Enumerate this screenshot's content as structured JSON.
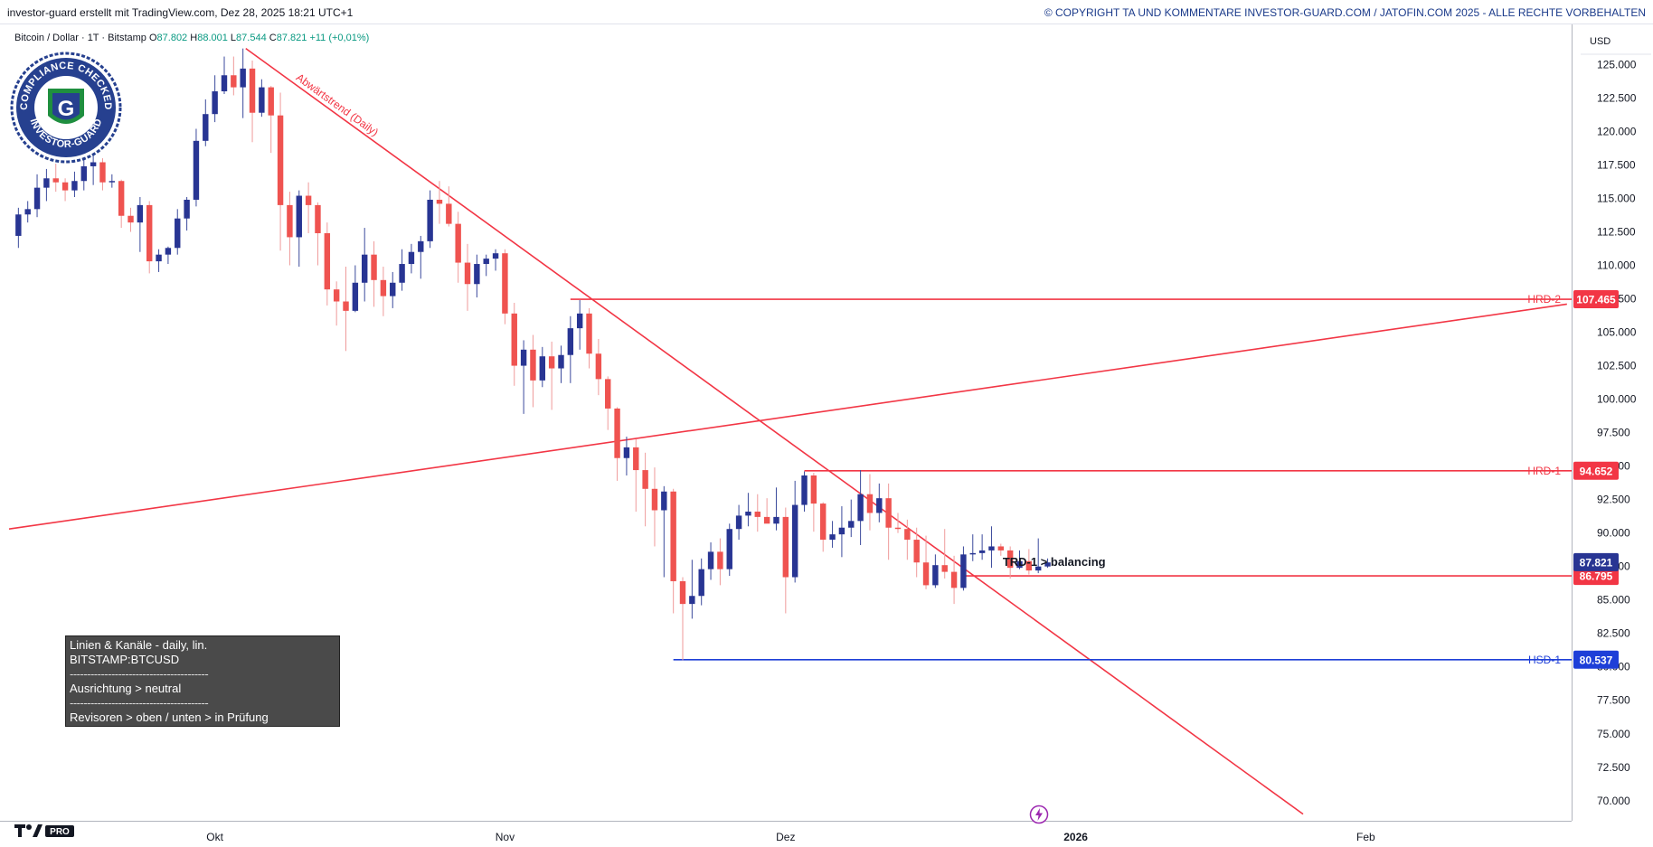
{
  "header": {
    "left_text": "investor-guard erstellt mit TradingView.com, Dez 28, 2025 18:21 UTC+1",
    "right_text": "© COPYRIGHT TA UND KOMMENTARE INVESTOR-GUARD.COM / JATOFIN.COM 2025 - ALLE RECHTE VORBEHALTEN"
  },
  "symbol": {
    "name": "Bitcoin / Dollar · 1T · Bitstamp",
    "o_label": "O",
    "o": "87.802",
    "h_label": "H",
    "h": "88.001",
    "l_label": "L",
    "l": "87.544",
    "c_label": "C",
    "c": "87.821",
    "change": "+11 (+0,01%)"
  },
  "logo": {
    "top_text": "COMPLIANCE CHECKED",
    "bottom_text": "INVESTOR-GUARD",
    "letter": "G"
  },
  "info_box": {
    "line1": "Linien & Kanäle - daily, lin.",
    "line2": "BITSTAMP:BTCUSD",
    "sep1": "----------------------------------------",
    "line3": "Ausrichtung > neutral",
    "sep2": "----------------------------------------",
    "line4": "Revisoren > oben / unten > in Prüfung"
  },
  "tv_badge": "PRO",
  "colors": {
    "up": "#283593",
    "down": "#ef5350",
    "resistance": "#f23645",
    "support": "#1e3fd8",
    "price": "#283593",
    "axis_text": "#131722"
  },
  "chart_data": {
    "type": "candlestick",
    "currency": "USD",
    "y_ticks": [
      70000,
      72500,
      75000,
      77500,
      80000,
      82500,
      85000,
      87500,
      90000,
      92500,
      95000,
      97500,
      100000,
      102500,
      105000,
      107500,
      110000,
      112500,
      115000,
      117500,
      120000,
      122500,
      125000
    ],
    "y_tick_labels": [
      "70.000",
      "72.500",
      "75.000",
      "77.500",
      "80.000",
      "82.500",
      "85.000",
      "87.500",
      "90.000",
      "92.500",
      "95.000",
      "97.500",
      "100.000",
      "102.500",
      "105.000",
      "107.500",
      "110.000",
      "112.500",
      "115.000",
      "117.500",
      "120.000",
      "122.500",
      "125.000"
    ],
    "ylim": [
      68500,
      128000
    ],
    "x_ticks": [
      {
        "label": "Okt",
        "index": 21
      },
      {
        "label": "Nov",
        "index": 52
      },
      {
        "label": "Dez",
        "index": 82
      },
      {
        "label": "2026",
        "index": 113
      },
      {
        "label": "Feb",
        "index": 144
      }
    ],
    "xlim": [
      -1,
      166
    ],
    "candles": [
      [
        112200,
        114300,
        111300,
        113800
      ],
      [
        113800,
        114800,
        113200,
        114200
      ],
      [
        114200,
        116800,
        113600,
        115800
      ],
      [
        115800,
        117200,
        114800,
        116500
      ],
      [
        116500,
        117600,
        115500,
        116200
      ],
      [
        116200,
        116500,
        114800,
        115600
      ],
      [
        115600,
        117000,
        115100,
        116300
      ],
      [
        116300,
        117900,
        115600,
        117400
      ],
      [
        117400,
        118200,
        116000,
        117700
      ],
      [
        117700,
        118000,
        115600,
        116200
      ],
      [
        116200,
        116800,
        115800,
        116300
      ],
      [
        116300,
        116400,
        112800,
        113700
      ],
      [
        113700,
        114300,
        112500,
        113200
      ],
      [
        113200,
        115100,
        111000,
        114500
      ],
      [
        114500,
        114800,
        109400,
        110300
      ],
      [
        110300,
        111200,
        109500,
        110800
      ],
      [
        110800,
        111400,
        110100,
        111300
      ],
      [
        111300,
        114200,
        110800,
        113500
      ],
      [
        113500,
        115100,
        112600,
        114900
      ],
      [
        114900,
        120200,
        114400,
        119300
      ],
      [
        119300,
        122400,
        118900,
        121300
      ],
      [
        121300,
        124200,
        120700,
        123000
      ],
      [
        123000,
        125600,
        122800,
        124200
      ],
      [
        124200,
        125600,
        122700,
        123300
      ],
      [
        123300,
        126200,
        121000,
        124700
      ],
      [
        124700,
        125300,
        119200,
        121400
      ],
      [
        121400,
        123900,
        121100,
        123300
      ],
      [
        123300,
        123400,
        118400,
        121200
      ],
      [
        121200,
        122900,
        111100,
        114500
      ],
      [
        114500,
        115500,
        110000,
        112100
      ],
      [
        112100,
        115600,
        109900,
        115200
      ],
      [
        115200,
        116200,
        112400,
        114500
      ],
      [
        114500,
        114700,
        110000,
        112400
      ],
      [
        112400,
        113200,
        107000,
        108200
      ],
      [
        108200,
        108800,
        105500,
        107300
      ],
      [
        107300,
        109900,
        103600,
        106600
      ],
      [
        106600,
        110000,
        106500,
        108700
      ],
      [
        108700,
        112800,
        107300,
        110800
      ],
      [
        110800,
        111800,
        106900,
        108900
      ],
      [
        108900,
        109900,
        106200,
        107700
      ],
      [
        107700,
        109500,
        106800,
        108700
      ],
      [
        108700,
        111200,
        108100,
        110100
      ],
      [
        110100,
        111600,
        109400,
        111000
      ],
      [
        111000,
        112200,
        109000,
        111800
      ],
      [
        111800,
        115600,
        111300,
        114900
      ],
      [
        114900,
        116300,
        113100,
        114600
      ],
      [
        114600,
        115900,
        112900,
        113100
      ],
      [
        113100,
        114000,
        108700,
        110200
      ],
      [
        110200,
        111600,
        106600,
        108600
      ],
      [
        108600,
        110800,
        107600,
        110100
      ],
      [
        110100,
        110800,
        109200,
        110500
      ],
      [
        110500,
        111200,
        109600,
        110900
      ],
      [
        110900,
        111200,
        105600,
        106400
      ],
      [
        106400,
        107200,
        101000,
        102500
      ],
      [
        102500,
        104400,
        98900,
        103700
      ],
      [
        103700,
        104800,
        99400,
        101400
      ],
      [
        101400,
        103900,
        100900,
        103200
      ],
      [
        103200,
        104300,
        99200,
        102300
      ],
      [
        102300,
        104000,
        101200,
        103300
      ],
      [
        103300,
        106200,
        101200,
        105300
      ],
      [
        105300,
        107400,
        103700,
        106400
      ],
      [
        106400,
        106800,
        102300,
        103400
      ],
      [
        103400,
        104500,
        100300,
        101500
      ],
      [
        101500,
        101700,
        97700,
        99300
      ],
      [
        99300,
        99400,
        93900,
        95600
      ],
      [
        95600,
        97200,
        94300,
        96400
      ],
      [
        96400,
        97000,
        91600,
        94700
      ],
      [
        94700,
        96000,
        90500,
        93300
      ],
      [
        93300,
        94900,
        89000,
        91700
      ],
      [
        91700,
        93500,
        86700,
        93100
      ],
      [
        93100,
        93300,
        84000,
        86400
      ],
      [
        86400,
        86700,
        80500,
        84700
      ],
      [
        84700,
        88000,
        83600,
        85300
      ],
      [
        85300,
        88100,
        84600,
        87300
      ],
      [
        87300,
        89300,
        86500,
        88600
      ],
      [
        88600,
        89600,
        86100,
        87300
      ],
      [
        87300,
        90700,
        86800,
        90300
      ],
      [
        90300,
        92100,
        89500,
        91300
      ],
      [
        91300,
        93000,
        90500,
        91600
      ],
      [
        91600,
        92900,
        90100,
        91200
      ],
      [
        91200,
        92600,
        90800,
        90700
      ],
      [
        90700,
        93400,
        90200,
        91200
      ],
      [
        91200,
        91900,
        84000,
        86700
      ],
      [
        86700,
        93900,
        86300,
        92100
      ],
      [
        92100,
        94600,
        91600,
        94300
      ],
      [
        94300,
        94500,
        90100,
        92200
      ],
      [
        92200,
        92300,
        88600,
        89500
      ],
      [
        89500,
        90900,
        88900,
        89900
      ],
      [
        89900,
        92000,
        88200,
        90400
      ],
      [
        90400,
        92500,
        89700,
        90900
      ],
      [
        90900,
        94700,
        89100,
        92900
      ],
      [
        92900,
        94400,
        90200,
        91500
      ],
      [
        91500,
        93700,
        90800,
        92600
      ],
      [
        92600,
        93700,
        88000,
        90400
      ],
      [
        90400,
        91500,
        90000,
        90300
      ],
      [
        90300,
        91000,
        88000,
        89500
      ],
      [
        89500,
        90400,
        86700,
        87800
      ],
      [
        87800,
        89800,
        85800,
        86100
      ],
      [
        86100,
        88400,
        85900,
        87600
      ],
      [
        87600,
        90300,
        86600,
        87100
      ],
      [
        87100,
        88300,
        84700,
        85900
      ],
      [
        85900,
        89000,
        85700,
        88400
      ],
      [
        88400,
        89900,
        87900,
        88500
      ],
      [
        88500,
        89900,
        88000,
        88700
      ],
      [
        88700,
        90500,
        87400,
        89000
      ],
      [
        89000,
        89200,
        88300,
        88700
      ],
      [
        88700,
        89000,
        86600,
        87400
      ],
      [
        87400,
        88700,
        87300,
        87900
      ],
      [
        87900,
        88800,
        86900,
        87200
      ],
      [
        87200,
        89600,
        87000,
        87500
      ],
      [
        87500,
        88100,
        87400,
        87802
      ]
    ],
    "price_lines": [
      {
        "label": "HRD-2",
        "value": 107465,
        "value_label": "107.465",
        "from_index": 59,
        "kind": "resistance"
      },
      {
        "label": "HRD-1",
        "value": 94652,
        "value_label": "94.652",
        "from_index": 84,
        "kind": "resistance"
      },
      {
        "label": "",
        "value": 86795,
        "value_label": "86.795",
        "from_index": 101,
        "kind": "resistance"
      },
      {
        "label": "HSD-1",
        "value": 80537,
        "value_label": "80.537",
        "from_index": 70,
        "kind": "support"
      }
    ],
    "current_price": {
      "value": 87821,
      "value_label": "87.821"
    },
    "trend_lines": [
      {
        "name": "Abwärtstrend (Daily)",
        "points": [
          [
            24.3,
            126200
          ],
          [
            137.3,
            69000
          ]
        ]
      },
      {
        "name": "",
        "points": [
          [
            -1,
            90300
          ],
          [
            165.5,
            107100
          ]
        ]
      }
    ],
    "annotation": {
      "text": "TRD-1 > balancing",
      "index": 105,
      "value": 87800
    },
    "trend_label": "Abwärtstrend (Daily)"
  }
}
